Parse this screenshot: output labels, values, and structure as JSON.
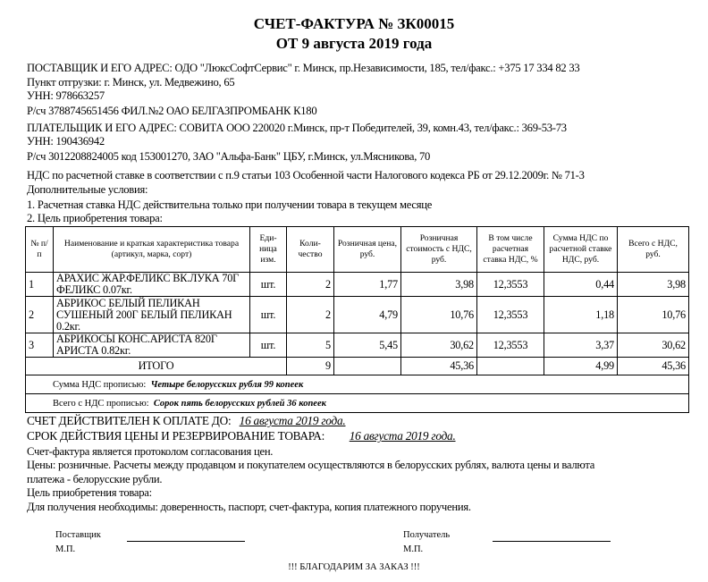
{
  "title": "СЧЕТ-ФАКТУРА № ЗК00015",
  "subtitle": "ОТ 9 августа 2019 года",
  "supplier": {
    "line1": "ПОСТАВЩИК И ЕГО АДРЕС: ОДО \"ЛюксСофтСервис\" г. Минск, пр.Независимости, 185, тел/факс.: +375 17 334 82 33",
    "line2": "Пункт отгрузки: г. Минск, ул. Медвежино, 65",
    "line3": "УНН: 978663257",
    "line4": "Р/сч 3788745651456  ФИЛ.№2 ОАО БЕЛГАЗПРОМБАНК К180"
  },
  "payer": {
    "line1": "ПЛАТЕЛЬЩИК И ЕГО АДРЕС: СОВИТА ООО 220020 г.Минск, пр-т Победителей, 39, комн.43, тел/факс.: 369-53-73",
    "line2": "УНН: 190436942",
    "line3": "Р/сч 3012208824005  код 153001270, ЗАО \"Альфа-Банк\" ЦБУ, г.Минск, ул.Мясникова, 70"
  },
  "conditions": {
    "line1": "НДС по расчетной ставке в соответствии с п.9 статьи 103 Особенной части Налогового кодекса РБ от 29.12.2009г. № 71-3",
    "line2": "Дополнительные условия:",
    "line3": "1. Расчетная ставка НДС действительна только при получении товара в текущем месяце",
    "line4": "2. Цель приобретения товара:"
  },
  "table": {
    "headers": [
      "№ п/п",
      "Наименование и краткая характеристика товара (артикул, марка, сорт)",
      "Еди-ница изм.",
      "Коли-чество",
      "Розничная цена, руб.",
      "Розничная стоимость с НДС, руб.",
      "В том числе расчетная ставка НДС, %",
      "Сумма НДС по расчетной ставке НДС, руб.",
      "Всего  с НДС, руб."
    ],
    "rows": [
      {
        "n": "1",
        "name": "АРАХИС ЖАР.ФЕЛИКС ВК.ЛУКА 70Г ФЕЛИКС 0.07кг.",
        "unit": "шт.",
        "qty": "2",
        "price": "1,77",
        "cost": "3,98",
        "rate": "12,3553",
        "vat": "0,44",
        "total": "3,98"
      },
      {
        "n": "2",
        "name": "АБРИКОС БЕЛЫЙ ПЕЛИКАН СУШЕНЫЙ 200Г БЕЛЫЙ ПЕЛИКАН 0.2кг.",
        "unit": "шт.",
        "qty": "2",
        "price": "4,79",
        "cost": "10,76",
        "rate": "12,3553",
        "vat": "1,18",
        "total": "10,76"
      },
      {
        "n": "3",
        "name": "АБРИКОСЫ КОНС.АРИСТА 820Г АРИСТА 0.82кг.",
        "unit": "шт.",
        "qty": "5",
        "price": "5,45",
        "cost": "30,62",
        "rate": "12,3553",
        "vat": "3,37",
        "total": "30,62"
      }
    ],
    "totals": {
      "label": "ИТОГО",
      "qty": "9",
      "cost": "45,36",
      "vat": "4,99",
      "total": "45,36"
    },
    "vat_words_label": "Сумма НДС прописью:",
    "vat_words": "Четыре белорусских рубля 99 копеек",
    "total_words_label": "Всего с НДС прописью:",
    "total_words": "Сорок пять белорусских рублей 36 копеек"
  },
  "footer": {
    "valid_label": "СЧЕТ ДЕЙСТВИТЕЛЕН К ОПЛАТЕ ДО:",
    "valid_date": "16 августа 2019 года.",
    "reserve_label": "СРОК ДЕЙСТВИЯ ЦЕНЫ И РЕЗЕРВИРОВАНИЕ ТОВАРА:",
    "reserve_date": "16 августа 2019 года.",
    "line1": "Счет-фактура является протоколом согласования цен.",
    "line2": "Цены: розничные. Расчеты между продавцом и покупателем осуществляются в белорусских рублях, валюта цены и валюта",
    "line3": "платежа - белорусские рубли.",
    "line4": "Цель приобретения товара:",
    "line5": "Для получения необходимы: доверенность, паспорт, счет-фактура, копия платежного поручения."
  },
  "signatures": {
    "supplier": "Поставщик",
    "receiver": "Получатель",
    "stamp": "М.П."
  },
  "thanks": "!!! БЛАГОДАРИМ ЗА ЗАКАЗ !!!"
}
